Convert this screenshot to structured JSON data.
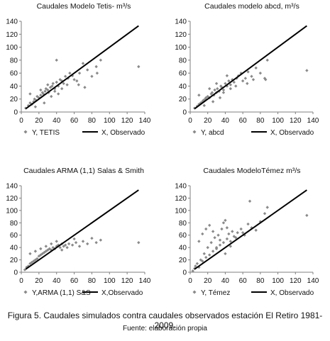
{
  "figure": {
    "caption": "Figura 5. Caudales simulados contra caudales observados estación El Retiro 1981-2009.",
    "source": "Fuente: elaboración propia",
    "colors": {
      "points": "#8a8a8a",
      "line": "#000000",
      "axis": "#7f7f7f"
    }
  },
  "chart_data": [
    {
      "type": "scatter",
      "title": "Caudales  Modelo Tetis-  m³/s",
      "xlabel": "",
      "ylabel": "",
      "xlim": [
        0,
        140
      ],
      "ylim": [
        0,
        140
      ],
      "xticks": [
        0,
        20,
        40,
        60,
        80,
        100,
        120,
        140
      ],
      "yticks": [
        0,
        20,
        40,
        60,
        80,
        100,
        120,
        140
      ],
      "grid": false,
      "legend": "bottom",
      "series": [
        {
          "name": "Y, TETIS",
          "kind": "points",
          "x": [
            5,
            8,
            10,
            12,
            14,
            15,
            17,
            18,
            20,
            22,
            24,
            25,
            27,
            28,
            30,
            31,
            33,
            35,
            36,
            38,
            40,
            42,
            44,
            46,
            48,
            50,
            53,
            55,
            58,
            60,
            63,
            66,
            70,
            75,
            80,
            85,
            90,
            133,
            40,
            10,
            16,
            22,
            26,
            30,
            34,
            38,
            42,
            46,
            52,
            65,
            72,
            86
          ],
          "y": [
            6,
            10,
            14,
            12,
            16,
            20,
            18,
            24,
            22,
            26,
            30,
            28,
            32,
            36,
            34,
            30,
            38,
            40,
            44,
            36,
            46,
            40,
            50,
            48,
            44,
            55,
            52,
            60,
            56,
            50,
            48,
            60,
            75,
            65,
            55,
            70,
            80,
            70,
            80,
            28,
            8,
            34,
            14,
            42,
            24,
            32,
            28,
            36,
            42,
            42,
            38,
            60
          ]
        },
        {
          "name": "X, Observado",
          "kind": "line",
          "x": [
            5,
            133
          ],
          "y": [
            5,
            133
          ]
        }
      ]
    },
    {
      "type": "scatter",
      "title": "Caudales  modelo abcd,  m³/s",
      "xlabel": "",
      "ylabel": "",
      "xlim": [
        0,
        140
      ],
      "ylim": [
        0,
        140
      ],
      "xticks": [
        0,
        20,
        40,
        60,
        80,
        100,
        120,
        140
      ],
      "yticks": [
        0,
        20,
        40,
        60,
        80,
        100,
        120,
        140
      ],
      "grid": false,
      "legend": "bottom",
      "series": [
        {
          "name": "Y, abcd",
          "kind": "points",
          "x": [
            5,
            8,
            10,
            12,
            14,
            15,
            17,
            18,
            20,
            22,
            24,
            25,
            27,
            28,
            30,
            31,
            33,
            35,
            36,
            38,
            40,
            42,
            44,
            46,
            48,
            50,
            53,
            55,
            58,
            60,
            63,
            66,
            70,
            75,
            80,
            85,
            88,
            133,
            10,
            16,
            22,
            26,
            30,
            34,
            38,
            42,
            46,
            52,
            65,
            72,
            86
          ],
          "y": [
            6,
            9,
            12,
            14,
            16,
            18,
            20,
            22,
            24,
            22,
            28,
            30,
            26,
            34,
            30,
            36,
            32,
            40,
            38,
            34,
            44,
            40,
            48,
            42,
            50,
            46,
            52,
            56,
            60,
            48,
            52,
            62,
            55,
            68,
            60,
            52,
            80,
            64,
            26,
            10,
            36,
            16,
            44,
            22,
            30,
            56,
            36,
            40,
            44,
            50,
            50
          ]
        },
        {
          "name": "X, Observado",
          "kind": "line",
          "x": [
            5,
            133
          ],
          "y": [
            5,
            133
          ]
        }
      ]
    },
    {
      "type": "scatter",
      "title": "Caudales  ARMA (1,1) Salas & Smith",
      "xlabel": "",
      "ylabel": "",
      "xlim": [
        0,
        140
      ],
      "ylim": [
        0,
        140
      ],
      "xticks": [
        0,
        20,
        40,
        60,
        80,
        100,
        120,
        140
      ],
      "yticks": [
        0,
        20,
        40,
        60,
        80,
        100,
        120,
        140
      ],
      "grid": false,
      "legend": "bottom",
      "series": [
        {
          "name": "Y,ARMA (1,1) S&S",
          "kind": "points",
          "x": [
            4,
            6,
            8,
            10,
            12,
            14,
            16,
            18,
            20,
            22,
            24,
            26,
            28,
            30,
            32,
            34,
            36,
            38,
            40,
            42,
            44,
            46,
            48,
            50,
            54,
            58,
            62,
            66,
            70,
            75,
            80,
            85,
            90,
            133,
            10,
            16,
            22,
            28,
            34,
            40,
            46,
            52,
            60
          ],
          "y": [
            4,
            8,
            10,
            14,
            16,
            18,
            20,
            22,
            26,
            28,
            30,
            32,
            34,
            36,
            38,
            36,
            40,
            38,
            42,
            44,
            40,
            46,
            42,
            44,
            46,
            44,
            48,
            42,
            50,
            46,
            55,
            48,
            52,
            48,
            30,
            34,
            38,
            42,
            46,
            50,
            36,
            40,
            54
          ]
        },
        {
          "name": "X,Observado",
          "kind": "line",
          "x": [
            5,
            133
          ],
          "y": [
            5,
            133
          ]
        }
      ]
    },
    {
      "type": "scatter",
      "title": "Caudales ModeloTémez m³/s",
      "xlabel": "",
      "ylabel": "",
      "xlim": [
        0,
        140
      ],
      "ylim": [
        0,
        140
      ],
      "xticks": [
        0,
        20,
        40,
        60,
        80,
        100,
        120,
        140
      ],
      "yticks": [
        0,
        20,
        40,
        60,
        80,
        100,
        120,
        140
      ],
      "grid": false,
      "legend": "bottom",
      "series": [
        {
          "name": "Y, Témez",
          "kind": "points",
          "x": [
            3,
            5,
            6,
            8,
            10,
            12,
            14,
            16,
            18,
            20,
            22,
            24,
            26,
            28,
            30,
            32,
            34,
            36,
            38,
            40,
            42,
            44,
            46,
            48,
            50,
            54,
            58,
            62,
            66,
            70,
            75,
            80,
            85,
            88,
            133,
            10,
            14,
            18,
            22,
            26,
            30,
            34,
            38,
            40,
            42,
            46,
            52,
            60,
            68
          ],
          "y": [
            2,
            6,
            10,
            14,
            8,
            20,
            18,
            30,
            24,
            40,
            28,
            48,
            34,
            56,
            40,
            60,
            44,
            70,
            48,
            84,
            54,
            62,
            50,
            66,
            58,
            64,
            70,
            60,
            78,
            72,
            68,
            82,
            95,
            105,
            92,
            50,
            62,
            70,
            76,
            66,
            38,
            52,
            80,
            30,
            72,
            42,
            56,
            64,
            115
          ]
        },
        {
          "name": "X, Observado",
          "kind": "line",
          "x": [
            5,
            133
          ],
          "y": [
            5,
            133
          ]
        }
      ]
    }
  ]
}
